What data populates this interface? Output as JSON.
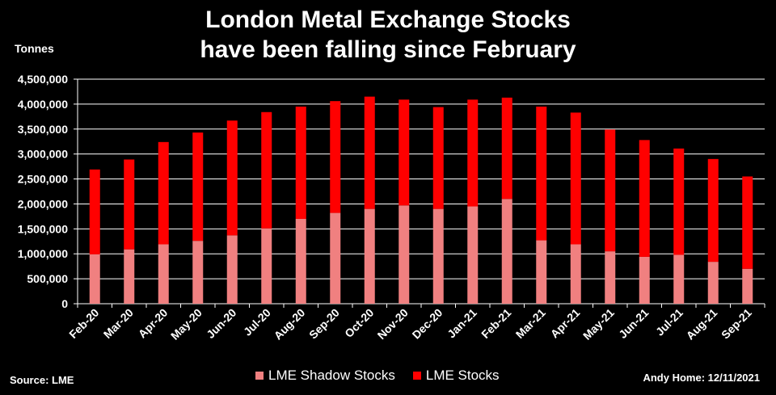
{
  "title_line1": "London Metal Exchange Stocks",
  "title_line2": "have been falling since February",
  "source": "Source: LME",
  "credit": "Andy Home: 12/11/2021",
  "chart_data": {
    "type": "bar",
    "stacked": true,
    "title": "London Metal Exchange Stocks have been falling since February",
    "ylabel": "Tonnes",
    "ylim": [
      0,
      4500000
    ],
    "yticks": [
      0,
      500000,
      1000000,
      1500000,
      2000000,
      2500000,
      3000000,
      3500000,
      4000000,
      4500000
    ],
    "ytick_labels": [
      "0",
      "500,000",
      "1,000,000",
      "1,500,000",
      "2,000,000",
      "2,500,000",
      "3,000,000",
      "3,500,000",
      "4,000,000",
      "4,500,000"
    ],
    "grid": true,
    "legend_position": "bottom",
    "categories": [
      "Feb-20",
      "Mar-20",
      "Apr-20",
      "May-20",
      "Jun-20",
      "Jul-20",
      "Aug-20",
      "Sep-20",
      "Oct-20",
      "Nov-20",
      "Dec-20",
      "Jan-21",
      "Feb-21",
      "Mar-21",
      "Apr-21",
      "May-21",
      "Jun-21",
      "Jul-21",
      "Aug-21",
      "Sep-21"
    ],
    "series": [
      {
        "name": "LME Shadow Stocks",
        "color": "#f08080",
        "values": [
          990000,
          1090000,
          1190000,
          1260000,
          1370000,
          1510000,
          1700000,
          1820000,
          1900000,
          1970000,
          1900000,
          1950000,
          2100000,
          1270000,
          1190000,
          1050000,
          940000,
          980000,
          840000,
          700000
        ]
      },
      {
        "name": "LME Stocks",
        "color": "#ff0000",
        "values": [
          1700000,
          1800000,
          2050000,
          2170000,
          2300000,
          2330000,
          2250000,
          2240000,
          2250000,
          2120000,
          2040000,
          2140000,
          2030000,
          2680000,
          2640000,
          2440000,
          2340000,
          2130000,
          2060000,
          1850000
        ]
      }
    ]
  }
}
